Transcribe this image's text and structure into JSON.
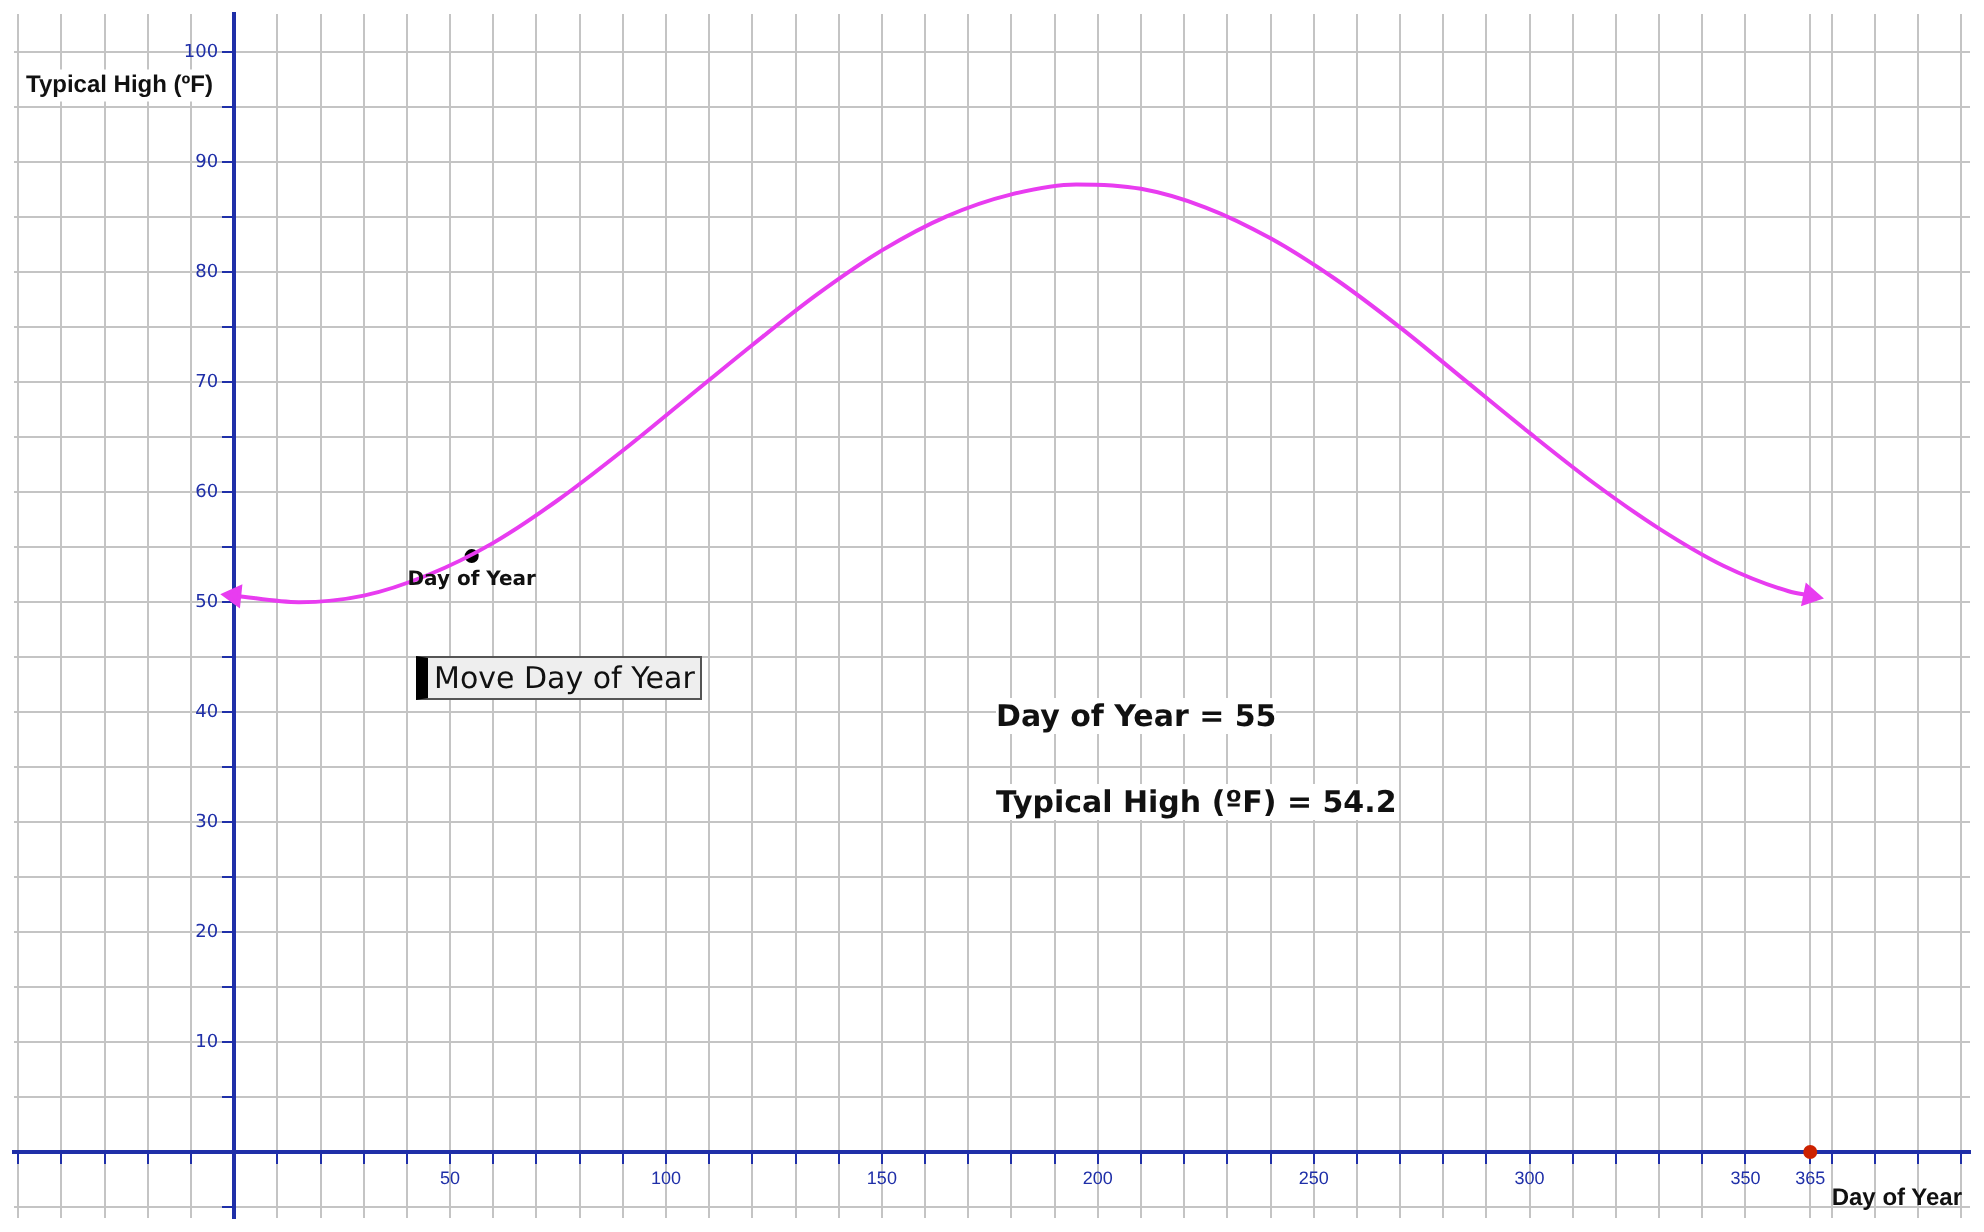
{
  "chart_data": {
    "type": "line",
    "xlabel": "Day of Year",
    "ylabel": "Typical High (ºF)",
    "xlim": [
      -51,
      402
    ],
    "ylim": [
      -6,
      103.5
    ],
    "xticks": [
      {
        "value": -50,
        "label": null
      },
      {
        "value": -40,
        "label": null
      },
      {
        "value": -30,
        "label": null
      },
      {
        "value": -20,
        "label": null
      },
      {
        "value": -10,
        "label": null
      },
      {
        "value": 0,
        "label": null
      },
      {
        "value": 10,
        "label": null
      },
      {
        "value": 20,
        "label": null
      },
      {
        "value": 30,
        "label": null
      },
      {
        "value": 40,
        "label": null
      },
      50,
      {
        "value": 60,
        "label": null
      },
      {
        "value": 70,
        "label": null
      },
      {
        "value": 80,
        "label": null
      },
      {
        "value": 90,
        "label": null
      },
      100,
      {
        "value": 110,
        "label": null
      },
      {
        "value": 120,
        "label": null
      },
      {
        "value": 130,
        "label": null
      },
      {
        "value": 140,
        "label": null
      },
      150,
      {
        "value": 160,
        "label": null
      },
      {
        "value": 170,
        "label": null
      },
      {
        "value": 180,
        "label": null
      },
      {
        "value": 190,
        "label": null
      },
      200,
      {
        "value": 210,
        "label": null
      },
      {
        "value": 220,
        "label": null
      },
      {
        "value": 230,
        "label": null
      },
      {
        "value": 240,
        "label": null
      },
      250,
      {
        "value": 260,
        "label": null
      },
      {
        "value": 270,
        "label": null
      },
      {
        "value": 280,
        "label": null
      },
      {
        "value": 290,
        "label": null
      },
      300,
      {
        "value": 310,
        "label": null
      },
      {
        "value": 320,
        "label": null
      },
      {
        "value": 330,
        "label": null
      },
      {
        "value": 340,
        "label": null
      },
      350,
      365,
      {
        "value": 370,
        "label": null
      },
      {
        "value": 380,
        "label": null
      },
      {
        "value": 390,
        "label": null
      },
      {
        "value": 400,
        "label": null
      }
    ],
    "yticks": [
      {
        "value": -5,
        "label": null
      },
      {
        "value": 0,
        "label": null
      },
      {
        "value": 5,
        "label": null
      },
      10,
      {
        "value": 15,
        "label": null
      },
      20,
      {
        "value": 25,
        "label": null
      },
      30,
      {
        "value": 35,
        "label": null
      },
      40,
      {
        "value": 45,
        "label": null
      },
      50,
      {
        "value": 55,
        "label": null
      },
      60,
      {
        "value": 65,
        "label": null
      },
      70,
      {
        "value": 75,
        "label": null
      },
      80,
      {
        "value": 85,
        "label": null
      },
      90,
      {
        "value": 95,
        "label": null
      },
      100
    ],
    "grid": true,
    "legend": false,
    "series": [
      {
        "type": "line",
        "color": "#e83cf0",
        "marker": "none",
        "x": [
          0,
          15,
          30,
          45,
          60,
          75,
          90,
          105,
          120,
          135,
          150,
          165,
          180,
          195,
          210,
          225,
          240,
          255,
          270,
          285,
          300,
          315,
          330,
          345,
          360,
          365
        ],
        "values": [
          50.6,
          50.0,
          50.6,
          52.5,
          55.4,
          59.3,
          63.8,
          68.6,
          73.4,
          78.0,
          82.0,
          85.1,
          87.1,
          88.0,
          87.6,
          85.9,
          83.1,
          79.4,
          75.0,
          70.2,
          65.4,
          60.8,
          56.7,
          53.3,
          51.0,
          50.6
        ]
      },
      {
        "type": "scatter",
        "color": "#000000",
        "marker": "circle",
        "x": [
          55
        ],
        "values": [
          54.2
        ]
      },
      {
        "type": "scatter",
        "color": "#cc2200",
        "marker": "circle",
        "x": [
          365
        ],
        "values": [
          0
        ]
      }
    ],
    "annotations": [
      {
        "text": "Day of Year",
        "x": 55,
        "y": 54.2
      },
      "Move Day of Year",
      "Day of Year = 55",
      "Typical High (ºF) = 54.2"
    ]
  }
}
